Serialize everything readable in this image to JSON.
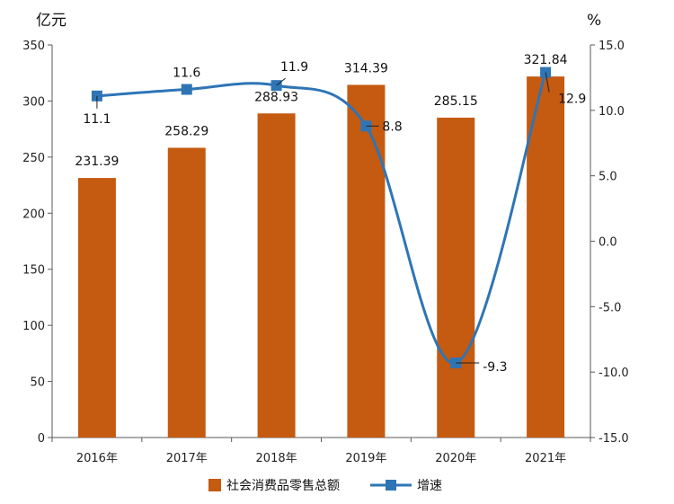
{
  "chart_data": {
    "type": "bar+line",
    "categories": [
      "2016年",
      "2017年",
      "2018年",
      "2019年",
      "2020年",
      "2021年"
    ],
    "series": [
      {
        "name": "社会消费品零售总额",
        "type": "bar",
        "axis": "left",
        "values": [
          231.39,
          258.29,
          288.93,
          314.39,
          285.15,
          321.84
        ],
        "labels": [
          "231.39",
          "258.29",
          "288.93",
          "314.39",
          "285.15",
          "321.84"
        ]
      },
      {
        "name": "增速",
        "type": "line",
        "axis": "right",
        "smooth": true,
        "values": [
          11.1,
          11.6,
          11.9,
          8.8,
          -9.3,
          12.9
        ],
        "labels": [
          "11.1",
          "11.6",
          "11.9",
          "8.8",
          "-9.3",
          "12.9"
        ]
      }
    ],
    "y_left": {
      "unit": "亿元",
      "ylim": [
        0,
        350
      ],
      "ticks": [
        "0",
        "50",
        "100",
        "150",
        "200",
        "250",
        "300",
        "350"
      ]
    },
    "y_right": {
      "unit": "%",
      "ylim": [
        -15,
        15
      ],
      "ticks": [
        "-15.0",
        "-10.0",
        "-5.0",
        "0.0",
        "5.0",
        "10.0",
        "15.0"
      ]
    },
    "grid": false,
    "legend_position": "bottom",
    "colors": {
      "bar": "#C55A11",
      "line": "#2E75B6",
      "marker": "#2E75B6",
      "axis": "#595959"
    }
  }
}
